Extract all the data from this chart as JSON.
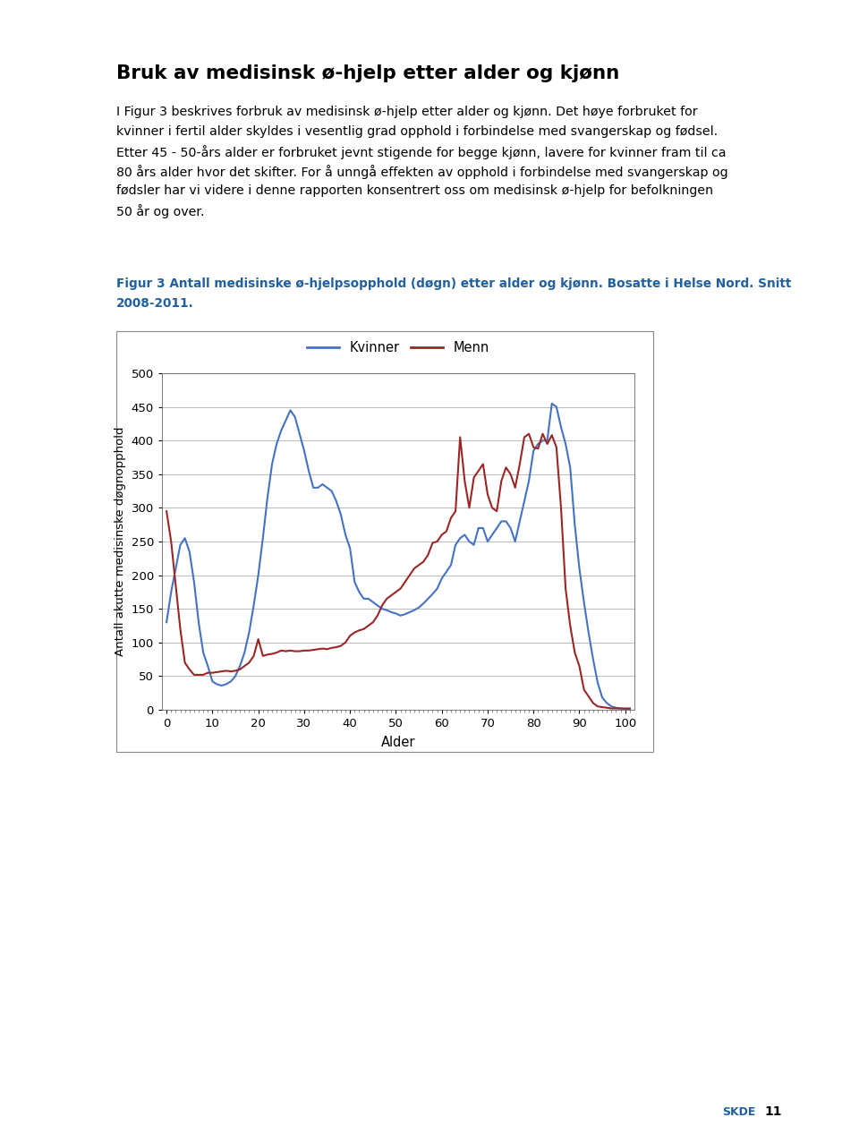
{
  "title": "Bruk av medisinsk ø-hjelp etter alder og kjønn",
  "body_line1": "I Figur 3 beskrives forbruk av medisinsk ø-hjelp etter alder og kjønn. Det høye forbruket for",
  "body_line2": "kvinner i fertil alder skyldes i vesentlig grad opphold i forbindelse med svangerskap og fødsel.",
  "body_line3": "Etter 45 - 50-års alder er forbruket jevnt stigende for begge kjønn, lavere for kvinner fram til ca",
  "body_line4": "80 års alder hvor det skifter. For å unngå effekten av opphold i forbindelse med svangerskap og",
  "body_line5": "fødsler har vi videre i denne rapporten konsentrert oss om medisinsk ø-hjelp for befolkningen",
  "body_line6": "50 år og over.",
  "caption_line1": "Figur 3 Antall medisinske ø-hjelpsopphold (døgn) etter alder og kjønn. Bosatte i Helse Nord. Snitt",
  "caption_line2": "2008-2011.",
  "caption_color": "#2060a0",
  "xlabel": "Alder",
  "ylabel": "Antall akutte medisinske døgnopphold",
  "ylim": [
    0,
    500
  ],
  "xlim": [
    -1,
    102
  ],
  "yticks": [
    0,
    50,
    100,
    150,
    200,
    250,
    300,
    350,
    400,
    450,
    500
  ],
  "xticks": [
    0,
    10,
    20,
    30,
    40,
    50,
    60,
    70,
    80,
    90,
    100
  ],
  "kvinner_color": "#4472c4",
  "menn_color": "#9b2626",
  "background_color": "#ffffff",
  "chart_bg": "#ffffff",
  "grid_color": "#b0b0b0",
  "kvinner_x": [
    0,
    1,
    2,
    3,
    4,
    5,
    6,
    7,
    8,
    9,
    10,
    11,
    12,
    13,
    14,
    15,
    16,
    17,
    18,
    19,
    20,
    21,
    22,
    23,
    24,
    25,
    26,
    27,
    28,
    29,
    30,
    31,
    32,
    33,
    34,
    35,
    36,
    37,
    38,
    39,
    40,
    41,
    42,
    43,
    44,
    45,
    46,
    47,
    48,
    49,
    50,
    51,
    52,
    53,
    54,
    55,
    56,
    57,
    58,
    59,
    60,
    61,
    62,
    63,
    64,
    65,
    66,
    67,
    68,
    69,
    70,
    71,
    72,
    73,
    74,
    75,
    76,
    77,
    78,
    79,
    80,
    81,
    82,
    83,
    84,
    85,
    86,
    87,
    88,
    89,
    90,
    91,
    92,
    93,
    94,
    95,
    96,
    97,
    98,
    99,
    100,
    101
  ],
  "kvinner_y": [
    130,
    175,
    210,
    245,
    255,
    235,
    190,
    130,
    85,
    65,
    42,
    38,
    36,
    38,
    42,
    50,
    65,
    85,
    115,
    155,
    200,
    255,
    315,
    365,
    395,
    415,
    430,
    445,
    435,
    410,
    385,
    355,
    330,
    330,
    335,
    330,
    325,
    310,
    290,
    260,
    240,
    190,
    175,
    165,
    165,
    160,
    155,
    150,
    148,
    145,
    143,
    140,
    142,
    145,
    148,
    152,
    158,
    165,
    172,
    180,
    195,
    205,
    215,
    245,
    255,
    260,
    250,
    245,
    270,
    270,
    250,
    260,
    270,
    280,
    280,
    270,
    250,
    280,
    310,
    340,
    385,
    395,
    400,
    400,
    455,
    450,
    420,
    395,
    360,
    275,
    210,
    160,
    115,
    75,
    40,
    18,
    10,
    5,
    3,
    2,
    1,
    1
  ],
  "menn_x": [
    0,
    1,
    2,
    3,
    4,
    5,
    6,
    7,
    8,
    9,
    10,
    11,
    12,
    13,
    14,
    15,
    16,
    17,
    18,
    19,
    20,
    21,
    22,
    23,
    24,
    25,
    26,
    27,
    28,
    29,
    30,
    31,
    32,
    33,
    34,
    35,
    36,
    37,
    38,
    39,
    40,
    41,
    42,
    43,
    44,
    45,
    46,
    47,
    48,
    49,
    50,
    51,
    52,
    53,
    54,
    55,
    56,
    57,
    58,
    59,
    60,
    61,
    62,
    63,
    64,
    65,
    66,
    67,
    68,
    69,
    70,
    71,
    72,
    73,
    74,
    75,
    76,
    77,
    78,
    79,
    80,
    81,
    82,
    83,
    84,
    85,
    86,
    87,
    88,
    89,
    90,
    91,
    92,
    93,
    94,
    95,
    96,
    97,
    98,
    99,
    100,
    101
  ],
  "menn_y": [
    295,
    250,
    185,
    120,
    70,
    60,
    52,
    52,
    52,
    55,
    55,
    56,
    57,
    58,
    57,
    58,
    60,
    65,
    70,
    80,
    105,
    80,
    82,
    83,
    85,
    88,
    87,
    88,
    87,
    87,
    88,
    88,
    89,
    90,
    91,
    90,
    92,
    93,
    95,
    100,
    110,
    115,
    118,
    120,
    125,
    130,
    140,
    155,
    165,
    170,
    175,
    180,
    190,
    200,
    210,
    215,
    220,
    230,
    248,
    250,
    260,
    265,
    285,
    295,
    405,
    340,
    300,
    345,
    355,
    365,
    320,
    300,
    295,
    340,
    360,
    350,
    330,
    365,
    405,
    410,
    390,
    388,
    410,
    395,
    408,
    390,
    300,
    180,
    125,
    85,
    65,
    30,
    20,
    10,
    5,
    4,
    3,
    2,
    2,
    2,
    2,
    2
  ],
  "page_width": 9.6,
  "page_height": 12.77,
  "skde_text": "SKDE",
  "page_number": "11"
}
